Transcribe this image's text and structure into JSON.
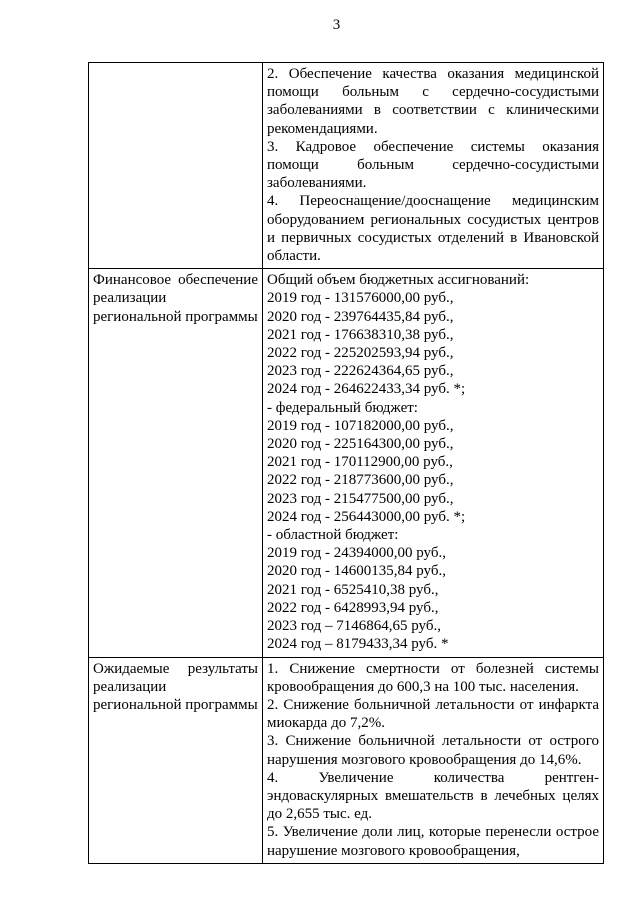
{
  "page": {
    "number": "3"
  },
  "table": {
    "rows": [
      {
        "name": "continuation-tasks",
        "left": "",
        "right_paragraphs": [
          "2. Обеспечение качества оказания медицинской помощи больным с сердечно-сосудистыми заболеваниями в соответствии с клиническими рекомендациями.",
          "3. Кадровое обеспечение системы оказания помощи больным сердечно-сосудистыми заболеваниями.",
          "4. Переоснащение/дооснащение медицинским оборудованием региональных сосудистых центров и первичных сосудистых отделений в Ивановской области."
        ]
      },
      {
        "name": "finance",
        "left": "Финансовое обеспечение реализации региональной программы",
        "right_lines": [
          "Общий объем бюджетных ассигнований:",
          "2019 год - 131576000,00 руб.,",
          "2020 год - 239764435,84 руб.,",
          "2021 год - 176638310,38 руб.,",
          "2022 год - 225202593,94 руб.,",
          "2023 год - 222624364,65 руб.,",
          "2024 год - 264622433,34 руб. *;",
          "- федеральный бюджет:",
          "2019 год - 107182000,00 руб.,",
          "2020 год - 225164300,00 руб.,",
          "2021 год - 170112900,00 руб.,",
          "2022 год - 218773600,00 руб.,",
          "2023 год - 215477500,00 руб.,",
          "2024 год - 256443000,00 руб. *;",
          "- областной бюджет:",
          "2019 год - 24394000,00 руб.,",
          "2020 год - 14600135,84 руб.,",
          "2021 год - 6525410,38 руб.,",
          "2022 год - 6428993,94 руб.,",
          "2023 год – 7146864,65 руб.,",
          "2024 год – 8179433,34 руб. *"
        ]
      },
      {
        "name": "expected-results",
        "left": "Ожидаемые результаты реализации региональной программы",
        "right_paragraphs": [
          "1. Снижение смертности от болезней системы кровообращения до 600,3 на 100 тыс. населения.",
          "2. Снижение больничной летальности от инфаркта миокарда до 7,2%.",
          "3. Снижение больничной летальности от острого нарушения мозгового кровообращения до 14,6%.",
          "4. Увеличение количества рентген-эндоваскулярных вмешательств в лечебных целях до 2,655 тыс. ед.",
          "5. Увеличение доли лиц, которые перенесли острое нарушение мозгового кровообращения,"
        ]
      }
    ]
  }
}
